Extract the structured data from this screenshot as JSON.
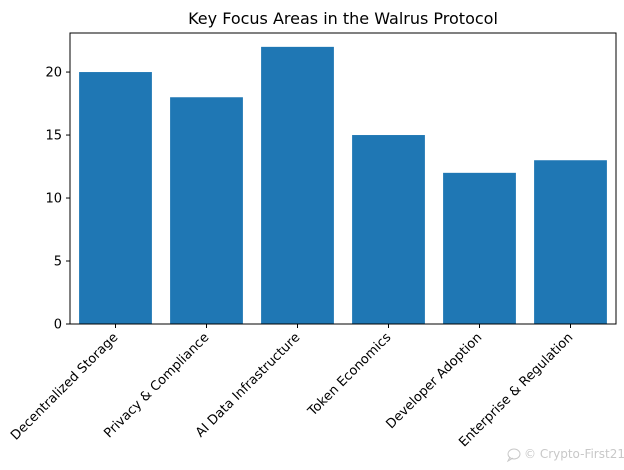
{
  "chart_data": {
    "type": "bar",
    "title": "Key Focus Areas in the Walrus Protocol",
    "categories": [
      "Decentralized Storage",
      "Privacy & Compliance",
      "AI Data Infrastructure",
      "Token Economics",
      "Developer Adoption",
      "Enterprise & Regulation"
    ],
    "values": [
      20,
      18,
      22,
      15,
      12,
      13
    ],
    "xlabel": "",
    "ylabel": "",
    "ylim": [
      0,
      23.1
    ],
    "yticks": [
      0,
      5,
      10,
      15,
      20
    ],
    "grid": false,
    "legend": "none",
    "bar_color": "#1f77b4",
    "x_tick_rotation_deg": 45
  },
  "watermark": {
    "text": "© Crypto-First21",
    "icon": "chat-bubble-icon"
  }
}
